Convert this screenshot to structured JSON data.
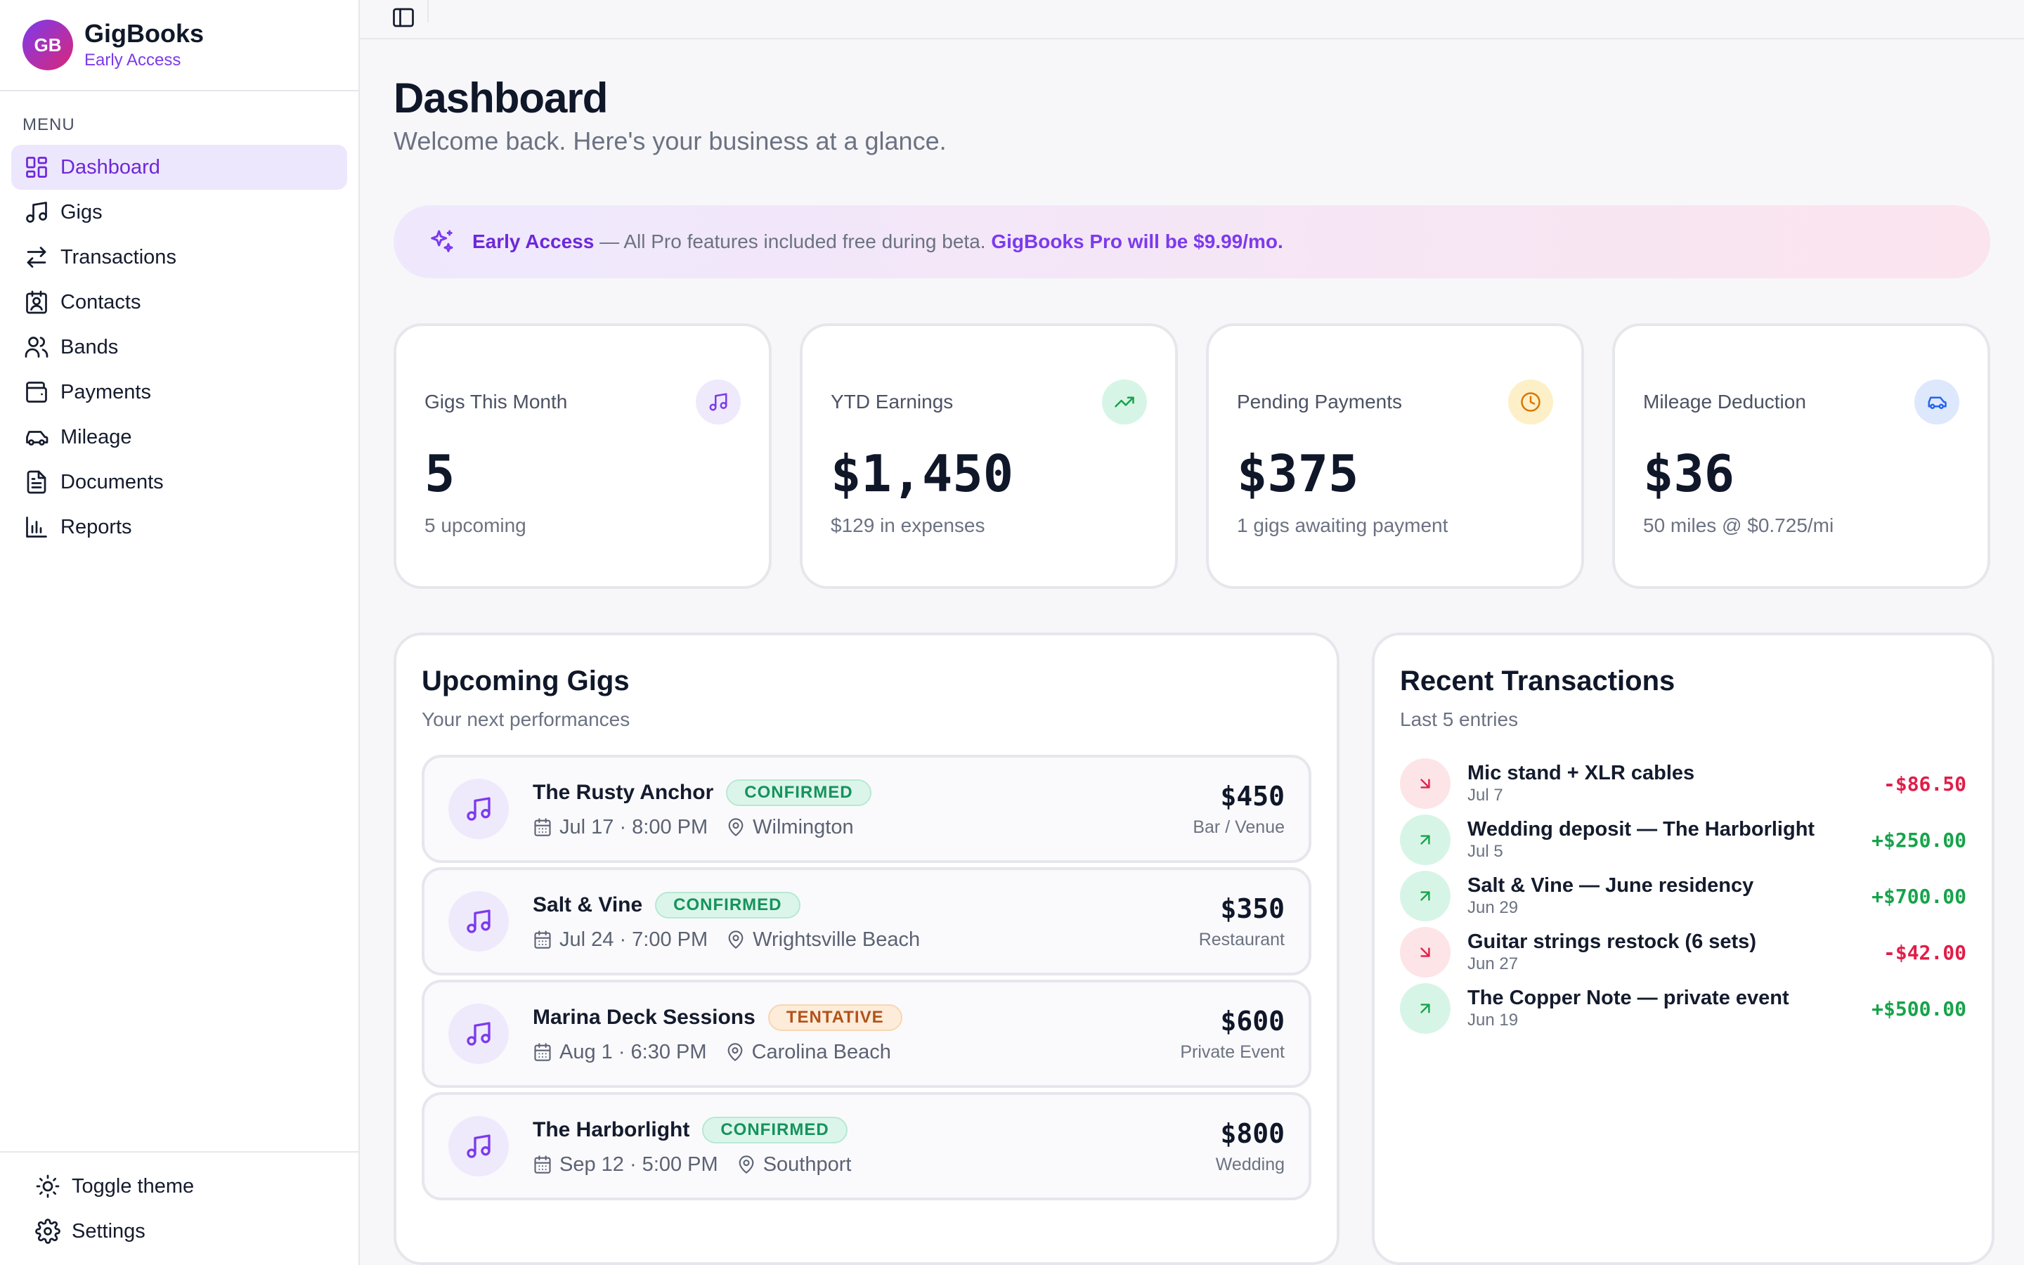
{
  "brand": {
    "initials": "GB",
    "name": "GigBooks",
    "tag": "Early Access"
  },
  "sidebar": {
    "menu_title": "MENU",
    "items": [
      {
        "label": "Dashboard",
        "icon": "dashboard-icon",
        "active": true
      },
      {
        "label": "Gigs",
        "icon": "music-note-icon"
      },
      {
        "label": "Transactions",
        "icon": "arrows-swap-icon"
      },
      {
        "label": "Contacts",
        "icon": "contact-card-icon"
      },
      {
        "label": "Bands",
        "icon": "users-icon"
      },
      {
        "label": "Payments",
        "icon": "wallet-icon"
      },
      {
        "label": "Mileage",
        "icon": "car-icon"
      },
      {
        "label": "Documents",
        "icon": "document-icon"
      },
      {
        "label": "Reports",
        "icon": "bar-chart-icon"
      }
    ],
    "footer": [
      {
        "label": "Toggle theme",
        "icon": "sun-icon"
      },
      {
        "label": "Settings",
        "icon": "gear-icon"
      }
    ]
  },
  "header": {
    "title": "Dashboard",
    "subtitle": "Welcome back. Here's your business at a glance."
  },
  "banner": {
    "title": "Early Access",
    "text": "— All Pro features included free during beta.",
    "pro": "GigBooks Pro will be $9.99/mo."
  },
  "stats": [
    {
      "label": "Gigs This Month",
      "value": "5",
      "sub": "5 upcoming",
      "icon": "music-note-icon",
      "color": "#7c3aed",
      "bg": "#efe9fc"
    },
    {
      "label": "YTD Earnings",
      "value": "$1,450",
      "sub": "$129 in expenses",
      "icon": "trending-up-icon",
      "color": "#16a34a",
      "bg": "#d7f5e6"
    },
    {
      "label": "Pending Payments",
      "value": "$375",
      "sub": "1 gigs awaiting payment",
      "icon": "clock-icon",
      "color": "#d97706",
      "bg": "#fdf0c8"
    },
    {
      "label": "Mileage Deduction",
      "value": "$36",
      "sub": "50 miles @ $0.725/mi",
      "icon": "car-icon",
      "color": "#2563eb",
      "bg": "#dde8fd"
    }
  ],
  "upcoming": {
    "title": "Upcoming Gigs",
    "subtitle": "Your next performances",
    "gigs": [
      {
        "name": "The Rusty Anchor",
        "status": "CONFIRMED",
        "status_kind": "confirmed",
        "date": "Jul 17 · 8:00 PM",
        "location": "Wilmington",
        "amount": "$450",
        "type": "Bar / Venue"
      },
      {
        "name": "Salt & Vine",
        "status": "CONFIRMED",
        "status_kind": "confirmed",
        "date": "Jul 24 · 7:00 PM",
        "location": "Wrightsville Beach",
        "amount": "$350",
        "type": "Restaurant"
      },
      {
        "name": "Marina Deck Sessions",
        "status": "TENTATIVE",
        "status_kind": "tentative",
        "date": "Aug 1 · 6:30 PM",
        "location": "Carolina Beach",
        "amount": "$600",
        "type": "Private Event"
      },
      {
        "name": "The Harborlight",
        "status": "CONFIRMED",
        "status_kind": "confirmed",
        "date": "Sep 12 · 5:00 PM",
        "location": "Southport",
        "amount": "$800",
        "type": "Wedding"
      }
    ]
  },
  "recent": {
    "title": "Recent Transactions",
    "subtitle": "Last 5 entries",
    "items": [
      {
        "name": "Mic stand + XLR cables",
        "date": "Jul 7",
        "amount": "-$86.50",
        "kind": "out"
      },
      {
        "name": "Wedding deposit — The Harborlight",
        "date": "Jul 5",
        "amount": "+$250.00",
        "kind": "in"
      },
      {
        "name": "Salt & Vine — June residency",
        "date": "Jun 29",
        "amount": "+$700.00",
        "kind": "in"
      },
      {
        "name": "Guitar strings restock (6 sets)",
        "date": "Jun 27",
        "amount": "-$42.00",
        "kind": "out"
      },
      {
        "name": "The Copper Note — private event",
        "date": "Jun 19",
        "amount": "+$500.00",
        "kind": "in"
      }
    ]
  }
}
